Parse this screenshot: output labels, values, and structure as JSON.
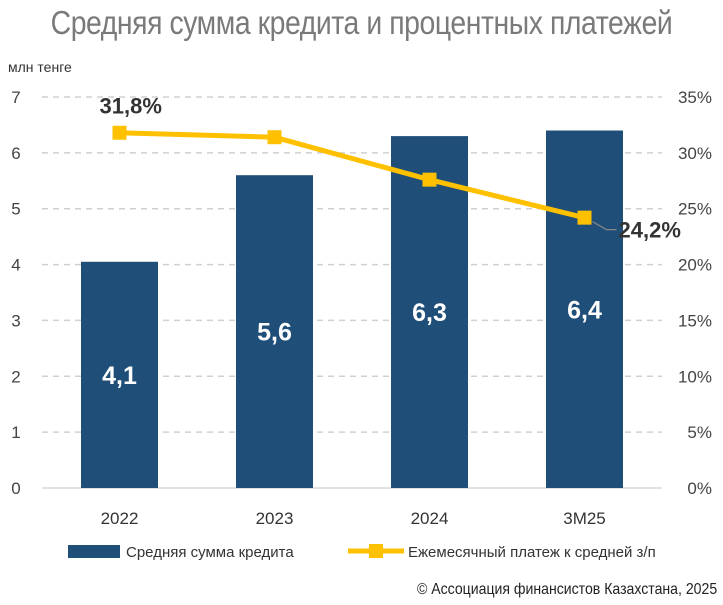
{
  "chart_data": {
    "type": "bar",
    "title": "Средняя сумма кредита и процентных платежей",
    "y_unit_label": "млн тенге",
    "categories": [
      "2022",
      "2023",
      "2024",
      "3M25"
    ],
    "series": [
      {
        "name": "Средняя сумма кредита",
        "type": "bar",
        "axis": "left",
        "values": [
          4.05,
          5.6,
          6.3,
          6.4
        ],
        "data_labels": [
          "4,1",
          "5,6",
          "6,3",
          "6,4"
        ]
      },
      {
        "name": "Ежемесячный платеж к средней з/п",
        "type": "line",
        "axis": "right",
        "values": [
          31.8,
          31.4,
          27.6,
          24.2
        ],
        "data_labels": [
          "31,8%",
          "",
          "",
          "24,2%"
        ]
      }
    ],
    "ylim": [
      0,
      7
    ],
    "y_ticks": [
      "0",
      "1",
      "2",
      "3",
      "4",
      "5",
      "6",
      "7"
    ],
    "y2lim": [
      0,
      35
    ],
    "y2_ticks": [
      "0%",
      "5%",
      "10%",
      "15%",
      "20%",
      "25%",
      "30%",
      "35%"
    ],
    "grid": true,
    "legend_position": "bottom",
    "colors": {
      "bar": "#1f4e79",
      "line": "#ffc000",
      "grid": "#d0d0d0",
      "title": "#7a7a7a"
    }
  },
  "source": "© Ассоциация финансистов Казахстана, 2025"
}
